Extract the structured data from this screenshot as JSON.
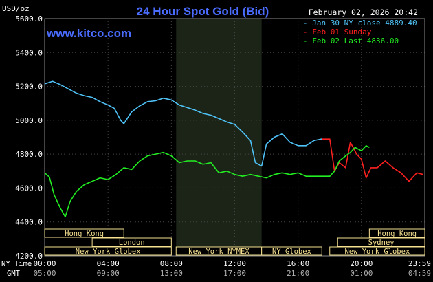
{
  "chart_data": {
    "type": "line",
    "title": "24 Hour Spot Gold (Bid)",
    "ylabel": "USD/oz",
    "watermark": "www.kitco.com",
    "timestamp": "February 02, 2026 20:42",
    "ylim": [
      4200,
      5600
    ],
    "xlim": [
      0,
      24
    ],
    "y_ticks": [
      "5600.0",
      "5400.0",
      "5200.0",
      "5000.0",
      "4800.0",
      "4600.0",
      "4400.0",
      "4200.0"
    ],
    "x_ticks_ny": [
      "00:00",
      "04:00",
      "08:00",
      "12:00",
      "16:00",
      "20:00",
      "23:59"
    ],
    "x_ticks_gmt": [
      "05:00",
      "09:00",
      "13:00",
      "17:00",
      "21:00",
      "01:00",
      "04:59"
    ],
    "ny_time_label": "NY Time",
    "gmt_label": "GMT",
    "highlight_region": [
      8.3,
      13.7
    ],
    "grid": true,
    "legend_position": "top-right",
    "legend": [
      {
        "label": "- Jan 30 NY close 4889.40",
        "color": "#4fc3f7"
      },
      {
        "label": "- Feb 01 Sunday",
        "color": "#ff2020"
      },
      {
        "label": "- Feb 02 Last 4836.00",
        "color": "#22ee22"
      }
    ],
    "series": [
      {
        "name": "Jan 30",
        "color": "#4fc3f7",
        "x": [
          0,
          0.5,
          1,
          1.5,
          2,
          2.5,
          3,
          3.5,
          4,
          4.4,
          4.8,
          5,
          5.5,
          6,
          6.5,
          7,
          7.5,
          8,
          8.5,
          9,
          9.5,
          10,
          10.5,
          11,
          11.5,
          12,
          12.5,
          13,
          13.3,
          13.7,
          14,
          14.5,
          15,
          15.5,
          16,
          16.5,
          17,
          17.5
        ],
        "y": [
          5215,
          5230,
          5210,
          5185,
          5160,
          5145,
          5135,
          5110,
          5090,
          5070,
          5000,
          4980,
          5050,
          5085,
          5110,
          5115,
          5130,
          5120,
          5090,
          5075,
          5060,
          5040,
          5030,
          5010,
          4990,
          4975,
          4930,
          4880,
          4750,
          4730,
          4860,
          4900,
          4920,
          4870,
          4850,
          4850,
          4880,
          4890
        ]
      },
      {
        "name": "Feb 01",
        "color": "#ff2020",
        "x": [
          17.5,
          18,
          18.3,
          18.6,
          19,
          19.3,
          19.7,
          20,
          20.3,
          20.6,
          21,
          21.5,
          22,
          22.5,
          23,
          23.5,
          23.9
        ],
        "y": [
          4889,
          4889,
          4700,
          4750,
          4720,
          4870,
          4800,
          4770,
          4660,
          4720,
          4720,
          4760,
          4720,
          4690,
          4640,
          4690,
          4680
        ]
      },
      {
        "name": "Feb 02",
        "color": "#22ee22",
        "x": [
          0,
          0.3,
          0.6,
          1,
          1.3,
          1.6,
          2,
          2.5,
          3,
          3.5,
          4,
          4.5,
          5,
          5.5,
          6,
          6.5,
          7,
          7.5,
          8,
          8.5,
          9,
          9.5,
          10,
          10.5,
          11,
          11.5,
          12,
          12.5,
          13,
          13.5,
          14,
          14.5,
          15,
          15.5,
          16,
          16.5,
          17,
          17.5,
          18,
          18.3,
          18.6,
          19,
          19.3,
          19.6,
          20,
          20.3,
          20.5
        ],
        "y": [
          4690,
          4665,
          4560,
          4480,
          4430,
          4520,
          4580,
          4620,
          4640,
          4660,
          4650,
          4680,
          4720,
          4710,
          4760,
          4790,
          4800,
          4810,
          4790,
          4750,
          4760,
          4760,
          4740,
          4750,
          4690,
          4700,
          4680,
          4670,
          4680,
          4670,
          4660,
          4680,
          4690,
          4680,
          4690,
          4670,
          4670,
          4670,
          4670,
          4700,
          4760,
          4790,
          4810,
          4840,
          4820,
          4850,
          4840
        ]
      }
    ],
    "markets": [
      {
        "name": "Hong Kong",
        "row": 0,
        "start": 0,
        "end": 5
      },
      {
        "name": "Hong Kong",
        "row": 0,
        "start": 20.5,
        "end": 24
      },
      {
        "name": "London",
        "row": 1,
        "start": 3,
        "end": 8
      },
      {
        "name": "Sydney",
        "row": 1,
        "start": 18.5,
        "end": 24
      },
      {
        "name": "New York Globex",
        "row": 2,
        "start": 0,
        "end": 8
      },
      {
        "name": "New York NYMEX",
        "row": 2,
        "start": 8.3,
        "end": 13.7
      },
      {
        "name": "NY Globex",
        "row": 2,
        "start": 13.7,
        "end": 17.5
      },
      {
        "name": "New York Globex",
        "row": 2,
        "start": 18,
        "end": 24
      }
    ],
    "market_color": "#f5e090"
  }
}
